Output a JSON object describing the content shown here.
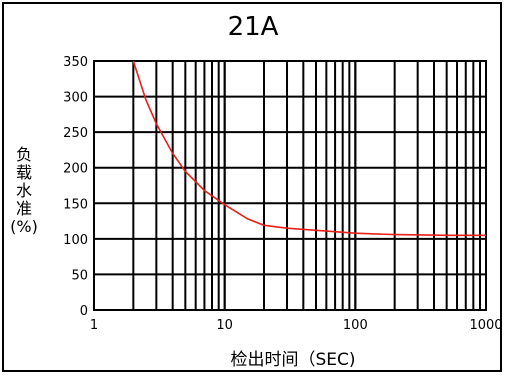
{
  "chart_data": {
    "type": "line",
    "title": "21A",
    "ylabel_lines": [
      "负",
      "载",
      "水",
      "准"
    ],
    "ylabel_unit": "(%)",
    "xlabel": "检出时间（SEC)",
    "x_scale": "log",
    "xlim": [
      1,
      1000
    ],
    "ylim": [
      0,
      350
    ],
    "x_ticks": [
      1,
      10,
      100,
      1000
    ],
    "x_tick_labels": [
      "1",
      "10",
      "100",
      "1000"
    ],
    "y_ticks": [
      0,
      50,
      100,
      150,
      200,
      250,
      300,
      350
    ],
    "y_tick_labels": [
      "0",
      "50",
      "100",
      "150",
      "200",
      "250",
      "300",
      "350"
    ],
    "grid": true,
    "series": [
      {
        "color": "#e8201c",
        "x": [
          2.0,
          2.5,
          3,
          4,
          5,
          7,
          10,
          15,
          20,
          30,
          50,
          100,
          200,
          500,
          1000
        ],
        "y": [
          350,
          295,
          262,
          220,
          195,
          168,
          148,
          128,
          119,
          115,
          112,
          108,
          106,
          105,
          105
        ]
      }
    ]
  }
}
